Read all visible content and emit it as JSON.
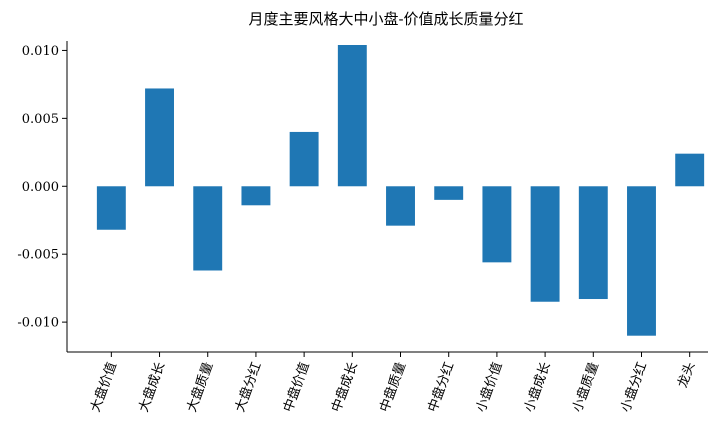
{
  "chart_data": {
    "type": "bar",
    "title": "月度主要风格大中小盘-价值成长质量分红",
    "xlabel": "",
    "ylabel": "",
    "categories": [
      "大盘价值",
      "大盘成长",
      "大盘质量",
      "大盘分红",
      "中盘价值",
      "中盘成长",
      "中盘质量",
      "中盘分红",
      "小盘价值",
      "小盘成长",
      "小盘质量",
      "小盘分红",
      "龙头"
    ],
    "values": [
      -0.0032,
      0.0072,
      -0.0062,
      -0.0014,
      0.004,
      0.0104,
      -0.0029,
      -0.001,
      -0.0056,
      -0.0085,
      -0.0083,
      -0.011,
      0.0024
    ],
    "ylim": [
      -0.0122,
      0.0104
    ],
    "yticks": [
      0.01,
      0.005,
      0.0,
      -0.005,
      -0.01
    ],
    "ytick_labels": [
      "0.010",
      "0.005",
      "0.000",
      "-0.005",
      "-0.010"
    ],
    "bar_color": "#1f77b4",
    "grid": false,
    "legend": "none"
  }
}
